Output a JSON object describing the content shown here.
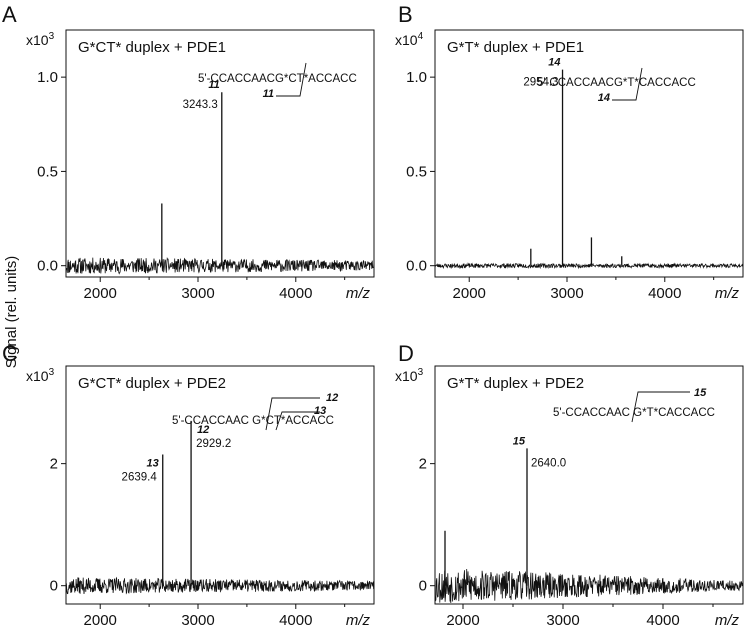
{
  "y_axis_label": "Signal (rel. units)",
  "chart_data": [
    {
      "type": "line",
      "panel": "A",
      "title": "G*CT* duplex + PDE1",
      "multiplier": {
        "base": "x10",
        "exp": "3"
      },
      "xlabel": "m/z",
      "xlim": [
        1650,
        4800
      ],
      "ylim": [
        -0.06,
        1.25
      ],
      "x_ticks": [
        2000,
        3000,
        4000
      ],
      "x_tick_labels": [
        "2000",
        "3000",
        "4000"
      ],
      "y_ticks": [
        0.0,
        0.5,
        1.0
      ],
      "y_tick_labels": [
        "0.0",
        "0.5",
        "1.0"
      ],
      "noise": {
        "amp": 0.045,
        "x_min": 1650,
        "decay": 0.4,
        "seed": 11
      },
      "peaks": [
        {
          "x": 2630,
          "y": 0.33
        },
        {
          "x": 3243.3,
          "y": 0.92,
          "label": "3243.3",
          "cut_label": "11"
        }
      ],
      "sequence": {
        "text": "5'-CCACCAACG*CT*ACCACC",
        "cut_label": "11"
      }
    },
    {
      "type": "line",
      "panel": "B",
      "title": "G*T* duplex + PDE1",
      "multiplier": {
        "base": "x10",
        "exp": "4"
      },
      "xlabel": "m/z",
      "xlim": [
        1650,
        4800
      ],
      "ylim": [
        -0.06,
        1.25
      ],
      "x_ticks": [
        2000,
        3000,
        4000
      ],
      "x_tick_labels": [
        "2000",
        "3000",
        "4000"
      ],
      "y_ticks": [
        0.0,
        0.5,
        1.0
      ],
      "y_tick_labels": [
        "0.0",
        "0.5",
        "1.0"
      ],
      "noise": {
        "amp": 0.012,
        "x_min": 1650,
        "decay": 0.2,
        "seed": 23
      },
      "peaks": [
        {
          "x": 2630,
          "y": 0.09
        },
        {
          "x": 2954.3,
          "y": 1.04,
          "label": "2954.3",
          "cut_label": "14"
        },
        {
          "x": 3250,
          "y": 0.15
        },
        {
          "x": 3560,
          "y": 0.05
        }
      ],
      "sequence": {
        "text": "5'-CCACCAACG*T*CACCACC",
        "cut_label": "14"
      }
    },
    {
      "type": "line",
      "panel": "C",
      "title": "G*CT* duplex + PDE2",
      "multiplier": {
        "base": "x10",
        "exp": "3"
      },
      "xlabel": "m/z",
      "xlim": [
        1650,
        4800
      ],
      "ylim": [
        -0.3,
        3.6
      ],
      "x_ticks": [
        2000,
        3000,
        4000
      ],
      "x_tick_labels": [
        "2000",
        "3000",
        "4000"
      ],
      "y_ticks": [
        0,
        2
      ],
      "y_tick_labels": [
        "0",
        "2"
      ],
      "noise": {
        "amp": 0.14,
        "x_min": 1650,
        "decay": 0.45,
        "seed": 37
      },
      "peaks": [
        {
          "x": 2639.4,
          "y": 2.15,
          "label": "2639.4",
          "cut_label": "13"
        },
        {
          "x": 2929.2,
          "y": 2.7,
          "label": "2929.2",
          "cut_label": "12"
        }
      ],
      "sequence": {
        "text": "5'-CCACCAAC G*CT*ACCACC",
        "cut_labels": [
          "13",
          "12"
        ]
      }
    },
    {
      "type": "line",
      "panel": "D",
      "title": "G*T* duplex + PDE2",
      "multiplier": {
        "base": "x10",
        "exp": "3"
      },
      "xlabel": "m/z",
      "xlim": [
        1720,
        4800
      ],
      "ylim": [
        -0.3,
        3.6
      ],
      "x_ticks": [
        2000,
        3000,
        4000
      ],
      "x_tick_labels": [
        "2000",
        "3000",
        "4000"
      ],
      "y_ticks": [
        0,
        2
      ],
      "y_tick_labels": [
        "0",
        "2"
      ],
      "noise": {
        "amp": 0.3,
        "x_min": 1720,
        "decay": 0.75,
        "seed": 53
      },
      "peaks": [
        {
          "x": 1820,
          "y": 0.9
        },
        {
          "x": 2640.0,
          "y": 2.25,
          "label": "2640.0",
          "cut_label": "15"
        }
      ],
      "sequence": {
        "text": "5'-CCACCAAC G*T*CACCACC",
        "cut_label": "15"
      }
    }
  ]
}
